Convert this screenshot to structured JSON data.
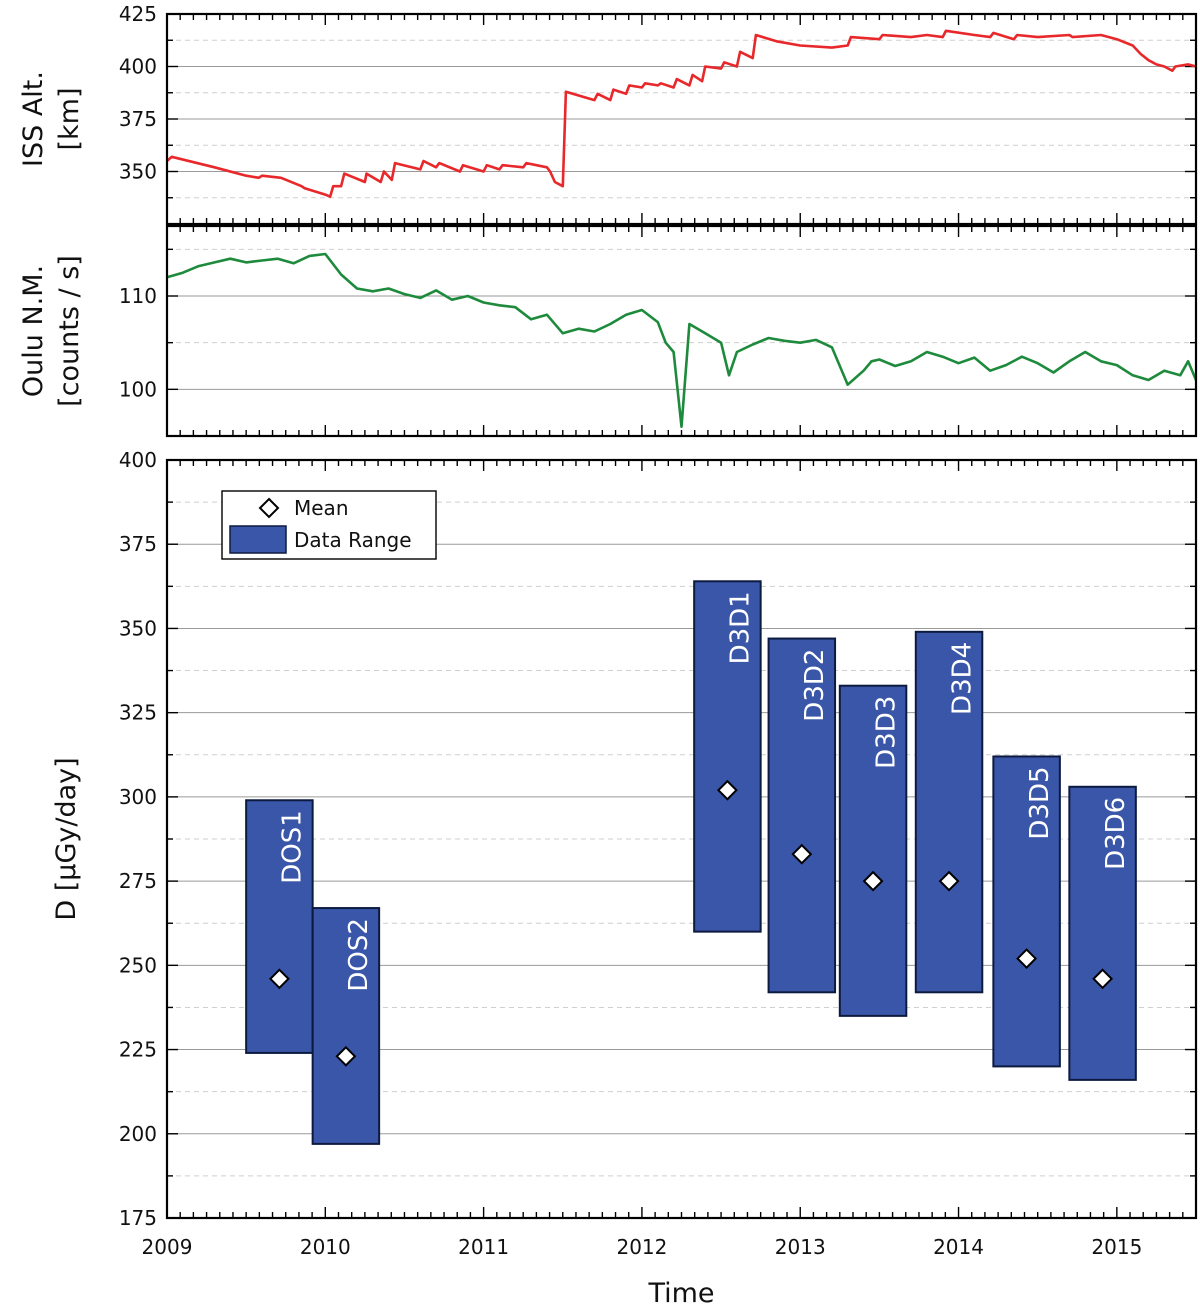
{
  "chart_data": [
    {
      "type": "line",
      "panel": "altitude",
      "ylabel_line1": "ISS Alt.",
      "ylabel_line2": "[km]",
      "ylim": [
        325,
        425
      ],
      "yticks": [
        350,
        375,
        400,
        425
      ],
      "xlim": [
        2009.0,
        2015.5
      ],
      "color": "#e8282a",
      "series": [
        {
          "x": [
            2009.0,
            2009.03,
            2009.3,
            2009.5,
            2009.58,
            2009.6,
            2009.72,
            2009.85,
            2009.87,
            2010.0,
            2010.03,
            2010.05,
            2010.1,
            2010.12,
            2010.25,
            2010.26,
            2010.35,
            2010.37,
            2010.42,
            2010.44,
            2010.6,
            2010.62,
            2010.7,
            2010.72,
            2010.85,
            2010.87,
            2011.0,
            2011.02,
            2011.1,
            2011.12,
            2011.25,
            2011.27,
            2011.4,
            2011.42,
            2011.45,
            2011.5,
            2011.52,
            2011.7,
            2011.72,
            2011.8,
            2011.82,
            2011.9,
            2011.92,
            2012.0,
            2012.02,
            2012.1,
            2012.12,
            2012.2,
            2012.22,
            2012.3,
            2012.32,
            2012.38,
            2012.4,
            2012.5,
            2012.52,
            2012.6,
            2012.62,
            2012.7,
            2012.72,
            2012.85,
            2013.0,
            2013.2,
            2013.3,
            2013.32,
            2013.5,
            2013.52,
            2013.7,
            2013.8,
            2013.9,
            2013.92,
            2014.1,
            2014.2,
            2014.22,
            2014.35,
            2014.37,
            2014.5,
            2014.7,
            2014.72,
            2014.9,
            2015.0,
            2015.1,
            2015.15,
            2015.2,
            2015.25,
            2015.3,
            2015.35,
            2015.37,
            2015.45,
            2015.5
          ],
          "y": [
            355,
            357,
            352,
            348,
            347,
            348,
            347,
            343,
            342,
            339,
            338,
            343,
            343,
            349,
            345,
            349,
            345,
            350,
            346,
            354,
            351,
            355,
            352,
            354,
            350,
            353,
            350,
            353,
            351,
            353,
            352,
            354,
            352,
            350,
            345,
            343,
            388,
            384,
            387,
            384,
            389,
            387,
            391,
            390,
            392,
            391,
            392,
            390,
            394,
            391,
            396,
            393,
            400,
            399,
            402,
            400,
            407,
            404,
            415,
            412,
            410,
            409,
            410,
            414,
            413,
            415,
            414,
            415,
            414,
            417,
            415,
            414,
            416,
            413,
            415,
            414,
            415,
            414,
            415,
            413,
            410,
            406,
            403,
            401,
            400,
            398,
            400,
            401,
            400
          ]
        }
      ]
    },
    {
      "type": "line",
      "panel": "neutron-monitor",
      "ylabel_line1": "Oulu N.M.",
      "ylabel_line2": "[counts / s]",
      "ylim": [
        95,
        117.5
      ],
      "yticks": [
        100,
        110
      ],
      "xlim": [
        2009.0,
        2015.5
      ],
      "color": "#1e8a3c",
      "series": [
        {
          "x": [
            2009.0,
            2009.1,
            2009.2,
            2009.3,
            2009.4,
            2009.5,
            2009.6,
            2009.7,
            2009.8,
            2009.9,
            2010.0,
            2010.1,
            2010.2,
            2010.3,
            2010.4,
            2010.5,
            2010.6,
            2010.7,
            2010.8,
            2010.9,
            2011.0,
            2011.1,
            2011.2,
            2011.3,
            2011.4,
            2011.5,
            2011.6,
            2011.7,
            2011.8,
            2011.9,
            2012.0,
            2012.1,
            2012.15,
            2012.2,
            2012.25,
            2012.3,
            2012.4,
            2012.5,
            2012.55,
            2012.6,
            2012.7,
            2012.8,
            2012.9,
            2013.0,
            2013.1,
            2013.2,
            2013.3,
            2013.4,
            2013.45,
            2013.5,
            2013.6,
            2013.7,
            2013.8,
            2013.9,
            2014.0,
            2014.1,
            2014.2,
            2014.3,
            2014.4,
            2014.5,
            2014.6,
            2014.7,
            2014.8,
            2014.9,
            2015.0,
            2015.1,
            2015.2,
            2015.3,
            2015.4,
            2015.45,
            2015.5
          ],
          "y": [
            112,
            112.5,
            113.2,
            113.6,
            114.0,
            113.6,
            113.8,
            114.0,
            113.5,
            114.3,
            114.5,
            112.3,
            110.8,
            110.5,
            110.8,
            110.2,
            109.8,
            110.6,
            109.6,
            110.0,
            109.3,
            109.0,
            108.8,
            107.5,
            108.0,
            106.0,
            106.5,
            106.2,
            107.0,
            108.0,
            108.5,
            107.2,
            105.0,
            104.0,
            96.0,
            107.0,
            106.0,
            105.0,
            101.5,
            104.0,
            104.8,
            105.5,
            105.2,
            105.0,
            105.3,
            104.5,
            100.5,
            102.0,
            103.0,
            103.2,
            102.5,
            103.0,
            104.0,
            103.5,
            102.8,
            103.4,
            102.0,
            102.6,
            103.5,
            102.8,
            101.8,
            103.0,
            104.0,
            103.0,
            102.6,
            101.5,
            101.0,
            102.0,
            101.5,
            103.0,
            101.0
          ]
        }
      ]
    },
    {
      "type": "box",
      "panel": "dose-rate",
      "ylabel": "D [µGy/day]",
      "xlabel": "Time",
      "ylim": [
        175,
        400
      ],
      "yticks": [
        175,
        200,
        225,
        250,
        275,
        300,
        325,
        350,
        375,
        400
      ],
      "xlim": [
        2009.0,
        2015.5
      ],
      "xticks": [
        "2009",
        "2010",
        "2011",
        "2012",
        "2013",
        "2014",
        "2015"
      ],
      "xtick_values": [
        2009,
        2010,
        2011,
        2012,
        2013,
        2014,
        2015
      ],
      "legend": {
        "mean_label": "Mean",
        "range_label": "Data Range",
        "placement": "top-left"
      },
      "box_color": "#3a56a8",
      "boxes": [
        {
          "label": "DOS1",
          "x_start": 2009.5,
          "x_end": 2009.92,
          "min": 224,
          "max": 299,
          "mean": 246
        },
        {
          "label": "DOS2",
          "x_start": 2009.92,
          "x_end": 2010.34,
          "min": 197,
          "max": 267,
          "mean": 223
        },
        {
          "label": "D3D1",
          "x_start": 2012.33,
          "x_end": 2012.75,
          "min": 260,
          "max": 364,
          "mean": 302
        },
        {
          "label": "D3D2",
          "x_start": 2012.8,
          "x_end": 2013.22,
          "min": 242,
          "max": 347,
          "mean": 283
        },
        {
          "label": "D3D3",
          "x_start": 2013.25,
          "x_end": 2013.67,
          "min": 235,
          "max": 333,
          "mean": 275
        },
        {
          "label": "D3D4",
          "x_start": 2013.73,
          "x_end": 2014.15,
          "min": 242,
          "max": 349,
          "mean": 275
        },
        {
          "label": "D3D5",
          "x_start": 2014.22,
          "x_end": 2014.64,
          "min": 220,
          "max": 312,
          "mean": 252
        },
        {
          "label": "D3D6",
          "x_start": 2014.7,
          "x_end": 2015.12,
          "min": 216,
          "max": 303,
          "mean": 246
        }
      ]
    }
  ]
}
